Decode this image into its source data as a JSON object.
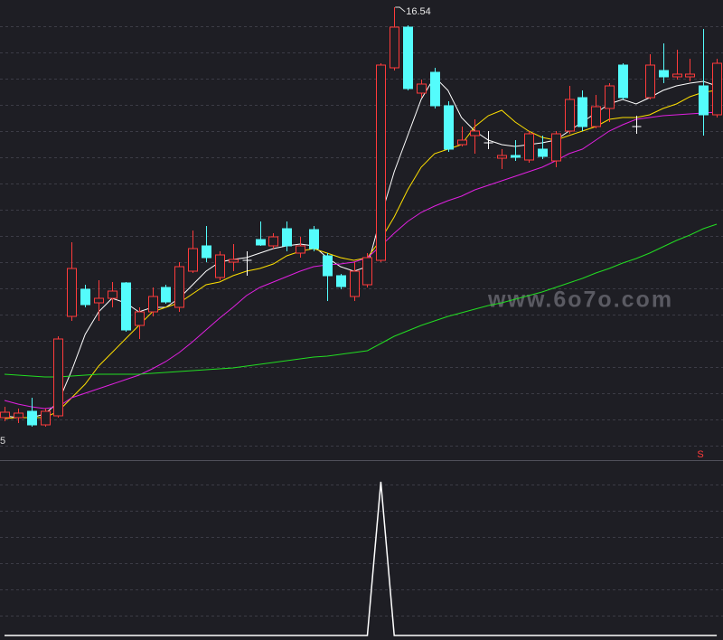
{
  "chart_data": [
    {
      "type": "candlestick",
      "open": [
        7.46,
        7.46,
        7.6,
        7.3,
        7.5,
        9.7,
        10.3,
        10.0,
        10.1,
        10.44,
        9.5,
        9.8,
        10.34,
        9.9,
        10.7,
        11.26,
        10.56,
        10.9,
        10.94,
        11.4,
        11.26,
        11.64,
        11.1,
        11.62,
        11.04,
        10.6,
        10.14,
        10.4,
        10.94,
        15.2,
        16.1,
        14.64,
        15.1,
        14.36,
        13.5,
        13.7,
        13.54,
        13.2,
        13.26,
        13.16,
        13.4,
        13.14,
        13.8,
        14.54,
        13.9,
        14.3,
        15.26,
        13.9,
        14.54,
        15.14,
        15.0,
        15.0,
        14.8,
        14.16
      ],
      "high": [
        7.7,
        7.66,
        7.9,
        7.66,
        9.26,
        11.34,
        10.4,
        10.5,
        10.46,
        10.46,
        9.9,
        10.34,
        10.4,
        10.9,
        11.6,
        11.7,
        11.14,
        11.3,
        11.14,
        11.8,
        11.54,
        11.8,
        11.46,
        11.7,
        11.1,
        10.64,
        10.9,
        11.1,
        15.3,
        16.54,
        16.14,
        14.94,
        15.2,
        14.46,
        13.9,
        14.06,
        13.8,
        13.4,
        13.6,
        13.8,
        13.7,
        13.8,
        14.8,
        14.7,
        14.6,
        14.86,
        15.3,
        14.14,
        15.5,
        15.74,
        15.6,
        15.4,
        16.06,
        15.4
      ],
      "low": [
        7.38,
        7.34,
        7.26,
        7.26,
        7.46,
        9.6,
        9.9,
        9.6,
        9.9,
        9.36,
        9.2,
        9.7,
        9.98,
        9.8,
        10.66,
        10.9,
        10.5,
        10.7,
        10.6,
        11.26,
        11.2,
        11.14,
        11.0,
        11.14,
        10.04,
        10.3,
        10.04,
        10.34,
        10.9,
        15.14,
        14.7,
        14.54,
        14.3,
        13.34,
        13.46,
        13.3,
        13.4,
        12.96,
        13.14,
        13.1,
        13.18,
        13.0,
        13.74,
        13.8,
        13.86,
        14.0,
        14.5,
        13.74,
        14.5,
        14.86,
        14.94,
        14.9,
        13.7,
        14.1
      ],
      "close": [
        7.58,
        7.56,
        7.3,
        7.6,
        9.2,
        10.76,
        9.96,
        10.1,
        10.26,
        9.4,
        9.8,
        10.14,
        10.02,
        10.8,
        11.2,
        11.0,
        11.06,
        10.96,
        10.94,
        11.28,
        11.46,
        11.26,
        11.26,
        11.2,
        10.6,
        10.36,
        10.7,
        11.0,
        15.26,
        16.1,
        14.74,
        14.84,
        14.36,
        13.4,
        13.6,
        13.8,
        13.54,
        13.26,
        13.22,
        13.74,
        13.24,
        13.74,
        14.5,
        13.9,
        14.34,
        14.8,
        14.54,
        13.9,
        15.26,
        15.0,
        15.06,
        15.06,
        14.16,
        15.3
      ],
      "up_color": "#ff3b3b",
      "down_color": "#54fcfc",
      "flat_color": "#ffffff",
      "series": [
        {
          "color": "#ffffff",
          "values": [
            7.5,
            7.46,
            7.46,
            7.54,
            7.8,
            8.5,
            9.3,
            9.8,
            10.1,
            10.0,
            9.8,
            9.9,
            9.9,
            10.1,
            10.4,
            10.7,
            10.9,
            10.96,
            11.0,
            11.1,
            11.2,
            11.26,
            11.3,
            11.26,
            11.0,
            10.8,
            10.7,
            10.8,
            11.9,
            12.9,
            13.7,
            14.5,
            15.0,
            14.7,
            14.1,
            13.8,
            13.6,
            13.5,
            13.46,
            13.5,
            13.54,
            13.6,
            13.8,
            14.0,
            14.2,
            14.4,
            14.5,
            14.4,
            14.54,
            14.7,
            14.8,
            14.86,
            14.9,
            14.8
          ]
        },
        {
          "color": "#ffe000",
          "values": [
            7.44,
            7.46,
            7.46,
            7.46,
            7.6,
            7.9,
            8.2,
            8.6,
            8.9,
            9.2,
            9.5,
            9.8,
            9.9,
            10.0,
            10.2,
            10.4,
            10.46,
            10.6,
            10.7,
            10.76,
            10.86,
            11.04,
            11.14,
            11.2,
            11.1,
            11.0,
            10.94,
            11.0,
            11.4,
            11.9,
            12.5,
            13.0,
            13.3,
            13.4,
            13.5,
            13.9,
            14.14,
            14.26,
            14.0,
            13.8,
            13.66,
            13.6,
            13.7,
            13.8,
            13.9,
            14.06,
            14.1,
            14.1,
            14.16,
            14.3,
            14.4,
            14.56,
            14.66,
            14.7
          ]
        },
        {
          "color": "#e020e0",
          "values": [
            7.84,
            7.76,
            7.7,
            7.66,
            7.7,
            7.9,
            8.0,
            8.1,
            8.2,
            8.3,
            8.4,
            8.54,
            8.7,
            8.9,
            9.14,
            9.4,
            9.66,
            9.9,
            10.16,
            10.34,
            10.46,
            10.58,
            10.7,
            10.8,
            10.84,
            10.86,
            10.9,
            11.0,
            11.26,
            11.54,
            11.8,
            12.0,
            12.14,
            12.26,
            12.36,
            12.5,
            12.6,
            12.7,
            12.8,
            12.9,
            13.0,
            13.14,
            13.3,
            13.4,
            13.6,
            13.8,
            13.94,
            14.06,
            14.1,
            14.14,
            14.16,
            14.18,
            14.2,
            14.22
          ]
        },
        {
          "color": "#22dd22",
          "values": [
            8.42,
            8.4,
            8.38,
            8.36,
            8.36,
            8.38,
            8.4,
            8.42,
            8.42,
            8.42,
            8.42,
            8.44,
            8.46,
            8.48,
            8.5,
            8.52,
            8.54,
            8.56,
            8.6,
            8.64,
            8.68,
            8.72,
            8.76,
            8.8,
            8.82,
            8.86,
            8.9,
            8.94,
            9.1,
            9.26,
            9.38,
            9.5,
            9.6,
            9.7,
            9.78,
            9.86,
            9.94,
            10.0,
            10.08,
            10.16,
            10.24,
            10.34,
            10.44,
            10.54,
            10.66,
            10.76,
            10.88,
            10.98,
            11.1,
            11.24,
            11.38,
            11.5,
            11.64,
            11.74
          ]
        }
      ],
      "ylim": [
        6.7,
        16.7
      ],
      "high_label": 16.54,
      "low_label": "5",
      "signal_label": "S",
      "watermark": "www.6o7o.com"
    },
    {
      "type": "line",
      "color": "#ffffff",
      "values": [
        0,
        0,
        0,
        0,
        0,
        0,
        0,
        0,
        0,
        0,
        0,
        0,
        0,
        0,
        0,
        0,
        0,
        0,
        0,
        0,
        0,
        0,
        0,
        0,
        0,
        0,
        0,
        0,
        1,
        0,
        0,
        0,
        0,
        0,
        0,
        0,
        0,
        0,
        0,
        0,
        0,
        0,
        0,
        0,
        0,
        0,
        0,
        0,
        0,
        0,
        0,
        0,
        0,
        0
      ],
      "ylim": [
        0,
        1
      ]
    }
  ]
}
